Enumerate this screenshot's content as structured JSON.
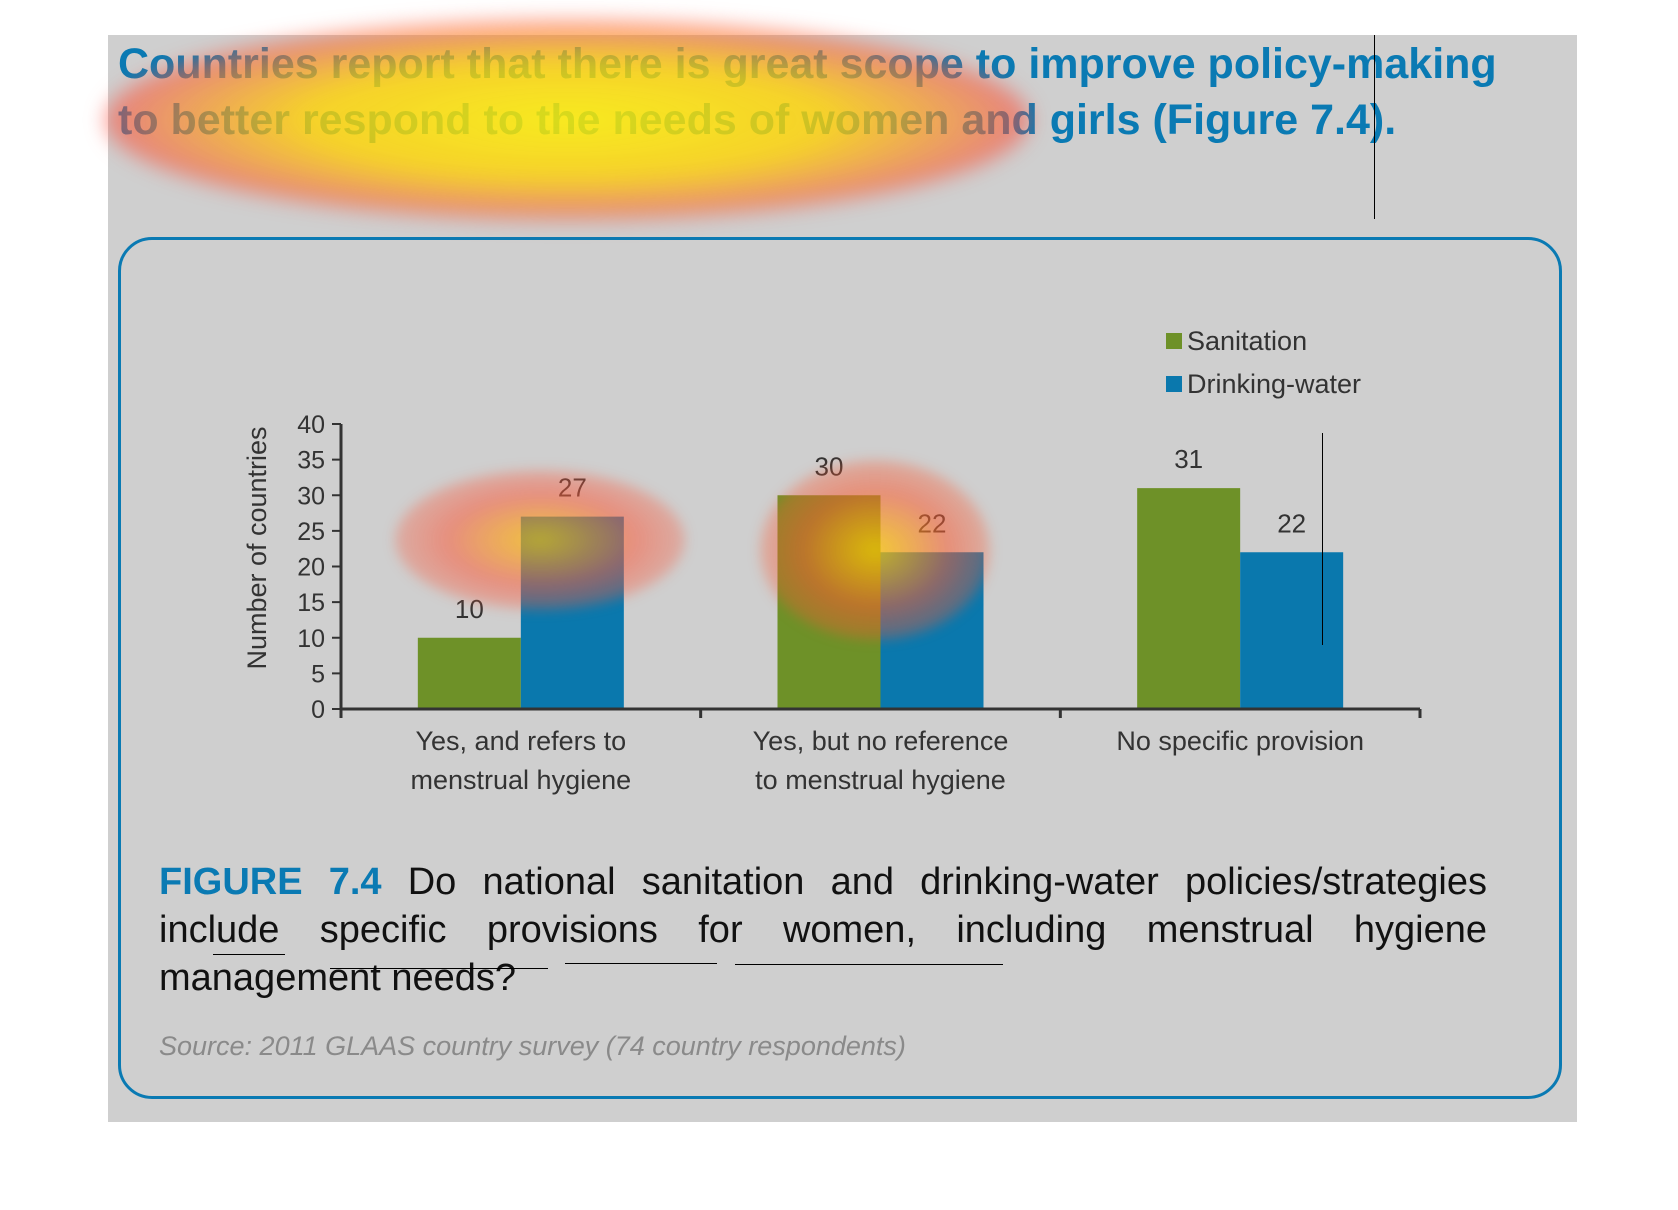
{
  "headline": {
    "text": "Countries report that there is great scope to improve policy-making to better respond to the needs of women and girls (Figure 7.4)."
  },
  "colors": {
    "sanitation": "#6e9128",
    "drinking_water": "#0a78ad",
    "accent": "#0a7ab3"
  },
  "chart_data": {
    "type": "bar",
    "categories": [
      [
        "Yes, and refers to",
        "menstrual hygiene"
      ],
      [
        "Yes, but no reference",
        "to menstrual hygiene"
      ],
      [
        "No specific provision"
      ]
    ],
    "series": [
      {
        "name": "Sanitation",
        "values": [
          10,
          30,
          31
        ]
      },
      {
        "name": "Drinking-water",
        "values": [
          27,
          22,
          22
        ]
      }
    ],
    "ylabel": "Number of countries",
    "ylim": [
      0,
      40
    ],
    "yticks": [
      0,
      5,
      10,
      15,
      20,
      25,
      30,
      35,
      40
    ],
    "legend_position": "top-right",
    "grid": false
  },
  "caption": {
    "figure_label": "FIGURE 7.4",
    "text": "Do national sanitation and drinking-water policies/strategies include specific provisions for women, including menstrual hygiene management needs?"
  },
  "source": "Source: 2011 GLAAS country survey (74 country respondents)"
}
